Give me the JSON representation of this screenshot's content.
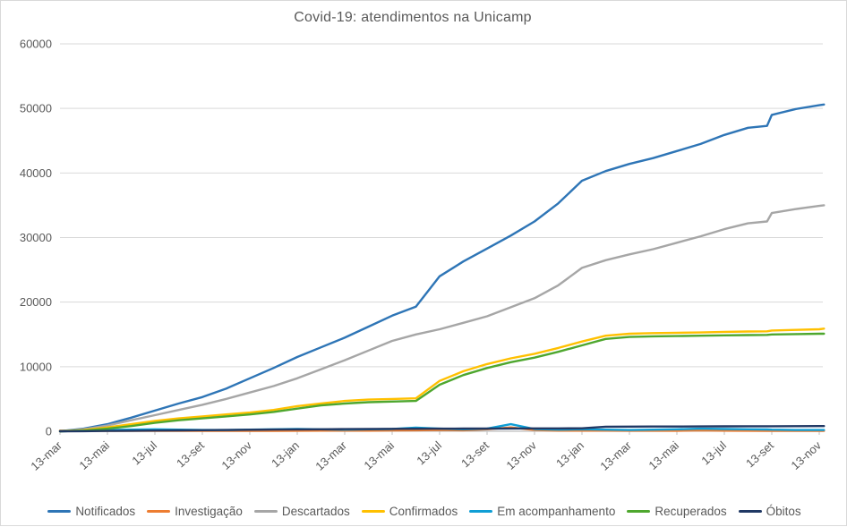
{
  "title": "Covid-19: atendimentos na Unicamp",
  "colors": {
    "text": "#595959",
    "grid": "#d9d9d9",
    "axis": "#bfbfbf",
    "background": "#ffffff",
    "border": "#d9d9d9"
  },
  "chart_data": {
    "type": "line",
    "title": "Covid-19: atendimentos na Unicamp",
    "xlabel": "",
    "ylabel": "",
    "ylim": [
      0,
      60000
    ],
    "y_ticks": [
      0,
      10000,
      20000,
      30000,
      40000,
      50000,
      60000
    ],
    "grid": "horizontal",
    "legend_position": "bottom",
    "x_tick_labels": [
      "13-mar",
      "13-mai",
      "13-jul",
      "13-set",
      "13-nov",
      "13-jan",
      "13-mar",
      "13-mai",
      "13-jul",
      "13-set",
      "13-nov",
      "13-jan",
      "13-mar",
      "13-mai",
      "13-jul",
      "13-set",
      "13-nov"
    ],
    "x_tick_note": "ticks every 2 months, 13-mar-2020 through 13-nov-2022",
    "x_months": [
      0,
      1,
      2,
      3,
      4,
      5,
      6,
      7,
      8,
      9,
      10,
      11,
      12,
      13,
      14,
      15,
      16,
      17,
      18,
      19,
      20,
      21,
      22,
      23,
      24,
      25,
      26,
      27,
      28,
      29,
      29.8,
      30,
      31,
      32,
      32.2
    ],
    "series": [
      {
        "name": "Notificados",
        "color": "#2E75B6",
        "values": [
          0,
          400,
          1100,
          2100,
          3200,
          4300,
          5300,
          6600,
          8200,
          9800,
          11500,
          13000,
          14500,
          16200,
          17900,
          19300,
          24000,
          26300,
          28300,
          30300,
          32500,
          35300,
          38800,
          40300,
          41400,
          42300,
          43400,
          44500,
          45900,
          47000,
          47300,
          49000,
          49900,
          50500,
          50600
        ]
      },
      {
        "name": "Investigação",
        "color": "#ED7D31",
        "values": [
          100,
          60,
          50,
          50,
          50,
          50,
          50,
          50,
          50,
          60,
          80,
          100,
          100,
          100,
          120,
          150,
          200,
          150,
          300,
          600,
          200,
          100,
          100,
          100,
          80,
          80,
          80,
          150,
          100,
          80,
          70,
          60,
          50,
          50,
          50
        ]
      },
      {
        "name": "Descartados",
        "color": "#A6A6A6",
        "values": [
          0,
          300,
          900,
          1700,
          2500,
          3300,
          4100,
          5000,
          6000,
          7000,
          8200,
          9600,
          11000,
          12500,
          14000,
          15000,
          15800,
          16800,
          17800,
          19200,
          20600,
          22600,
          25300,
          26500,
          27400,
          28200,
          29200,
          30200,
          31300,
          32200,
          32500,
          33800,
          34400,
          34900,
          35000
        ]
      },
      {
        "name": "Confirmados",
        "color": "#FFC000",
        "values": [
          0,
          200,
          600,
          1100,
          1600,
          2000,
          2300,
          2600,
          2900,
          3300,
          3900,
          4300,
          4700,
          4900,
          5000,
          5100,
          7800,
          9300,
          10400,
          11300,
          12000,
          12900,
          13900,
          14800,
          15100,
          15200,
          15250,
          15300,
          15400,
          15450,
          15480,
          15600,
          15700,
          15800,
          15900
        ]
      },
      {
        "name": "Em acompanhamento",
        "color": "#0F9ED5",
        "values": [
          0,
          100,
          200,
          250,
          300,
          250,
          200,
          200,
          250,
          300,
          350,
          300,
          250,
          300,
          350,
          550,
          400,
          300,
          400,
          1100,
          350,
          250,
          300,
          250,
          200,
          250,
          300,
          400,
          350,
          300,
          280,
          250,
          200,
          200,
          200
        ]
      },
      {
        "name": "Recuperados",
        "color": "#4EA72E",
        "values": [
          0,
          100,
          400,
          800,
          1300,
          1700,
          2000,
          2300,
          2600,
          3000,
          3500,
          4000,
          4300,
          4500,
          4600,
          4700,
          7200,
          8700,
          9800,
          10700,
          11400,
          12300,
          13300,
          14300,
          14600,
          14700,
          14750,
          14800,
          14850,
          14900,
          14920,
          15000,
          15050,
          15100,
          15100
        ]
      },
      {
        "name": "Óbitos",
        "color": "#203864",
        "values": [
          0,
          20,
          50,
          80,
          110,
          140,
          170,
          200,
          230,
          260,
          290,
          310,
          330,
          350,
          370,
          390,
          400,
          410,
          420,
          430,
          440,
          450,
          460,
          700,
          720,
          730,
          740,
          750,
          760,
          770,
          775,
          780,
          790,
          800,
          800
        ]
      }
    ]
  }
}
